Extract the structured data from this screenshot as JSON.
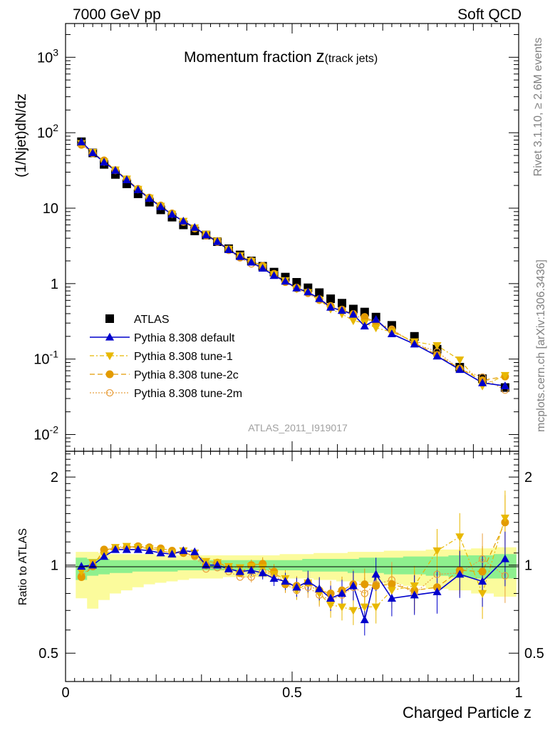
{
  "header": {
    "left": "7000 GeV pp",
    "right": "Soft QCD"
  },
  "side_text": {
    "rivet": "Rivet 3.1.10, ≥ 2.6M events",
    "site": "mcplots.cern.ch [arXiv:1306.3436]"
  },
  "chart_data": {
    "type": "scatter",
    "title": "Momentum fraction ",
    "title_var": "z",
    "title_sub": "(track jets)",
    "ylabel": "(1/Njet)dN/dz",
    "ratio_ylabel": "Ratio to ATLAS",
    "xlabel": "Charged Particle z",
    "analysis_label": "ATLAS_2011_I919017",
    "xlim": [
      0,
      1
    ],
    "ylim": [
      0.006,
      2800
    ],
    "yscale": "log",
    "ratio_ylim": [
      0.4,
      2.45
    ],
    "ratio_yscale": "log",
    "x_ticks": [
      "0",
      "0.5",
      "1"
    ],
    "y_ticks": [
      "10^-2",
      "10^-1",
      "1",
      "10",
      "10^2",
      "10^3"
    ],
    "ratio_ticks": [
      "0.5",
      "1",
      "2"
    ],
    "legend_placement": "bottom-left",
    "colors": {
      "data": "#000000",
      "default": "#0000cc",
      "tune1": "#e8b800",
      "tune2c": "#e39b00",
      "tune2m": "#e8a040",
      "band_inner": "#8ef08e",
      "band_outer": "#fbfb9c"
    },
    "x": [
      0.035,
      0.06,
      0.085,
      0.11,
      0.135,
      0.16,
      0.185,
      0.21,
      0.235,
      0.26,
      0.285,
      0.31,
      0.335,
      0.36,
      0.385,
      0.41,
      0.435,
      0.46,
      0.485,
      0.51,
      0.535,
      0.56,
      0.585,
      0.61,
      0.635,
      0.66,
      0.685,
      0.72,
      0.77,
      0.82,
      0.87,
      0.92,
      0.97
    ],
    "atlas": [
      76,
      54,
      38,
      28,
      21,
      15.5,
      12,
      9.5,
      7.6,
      6.0,
      5.0,
      4.4,
      3.6,
      2.9,
      2.4,
      2.0,
      1.7,
      1.42,
      1.22,
      1.04,
      0.88,
      0.76,
      0.63,
      0.55,
      0.46,
      0.42,
      0.36,
      0.28,
      0.2,
      0.135,
      0.078,
      0.055,
      0.042
    ],
    "series": [
      {
        "name": "ATLAS",
        "ref": "atlas"
      },
      {
        "name": "Pythia 8.308 default",
        "ratio": [
          0.99,
          1.0,
          1.07,
          1.13,
          1.13,
          1.13,
          1.12,
          1.1,
          1.09,
          1.12,
          1.11,
          1.0,
          1.0,
          0.97,
          0.95,
          0.96,
          0.94,
          0.9,
          0.88,
          0.84,
          0.88,
          0.83,
          0.77,
          0.8,
          0.85,
          0.65,
          0.93,
          0.77,
          0.79,
          0.81,
          0.93,
          0.88,
          1.05
        ]
      },
      {
        "name": "Pythia 8.308 tune-1",
        "ratio": [
          0.95,
          1.02,
          1.08,
          1.15,
          1.16,
          1.15,
          1.14,
          1.12,
          1.1,
          1.12,
          1.1,
          1.03,
          1.02,
          0.99,
          0.98,
          0.99,
          0.98,
          0.93,
          0.9,
          0.82,
          0.87,
          0.8,
          0.73,
          0.72,
          0.7,
          0.72,
          0.72,
          0.82,
          0.85,
          1.12,
          1.25,
          0.8,
          1.45
        ]
      },
      {
        "name": "Pythia 8.308 tune-2c",
        "ratio": [
          0.91,
          0.99,
          1.13,
          1.14,
          1.15,
          1.16,
          1.15,
          1.14,
          1.12,
          1.1,
          1.08,
          1.0,
          1.02,
          0.98,
          0.94,
          1.0,
          1.01,
          0.95,
          0.86,
          0.85,
          0.87,
          0.82,
          0.8,
          0.82,
          0.86,
          0.86,
          0.85,
          0.86,
          0.82,
          0.84,
          0.96,
          0.95,
          1.4
        ]
      },
      {
        "name": "Pythia 8.308 tune-2m",
        "ratio": [
          0.92,
          1.0,
          1.12,
          1.14,
          1.15,
          1.15,
          1.14,
          1.12,
          1.1,
          1.1,
          1.07,
          0.97,
          0.98,
          0.95,
          0.91,
          0.91,
          0.95,
          0.93,
          0.86,
          0.82,
          0.84,
          0.79,
          0.76,
          0.79,
          0.84,
          0.8,
          0.86,
          0.89,
          0.8,
          0.93,
          0.94,
          1.05,
          0.92
        ]
      }
    ],
    "band_inner": {
      "lo": [
        0.89,
        0.92,
        0.93,
        0.94,
        0.94,
        0.95,
        0.95,
        0.95,
        0.95,
        0.96,
        0.96,
        0.96,
        0.96,
        0.96,
        0.96,
        0.96,
        0.96,
        0.96,
        0.96,
        0.96,
        0.95,
        0.95,
        0.95,
        0.95,
        0.94,
        0.94,
        0.94,
        0.93,
        0.93,
        0.92,
        0.91,
        0.9,
        0.9
      ],
      "hi": [
        1.06,
        1.05,
        1.05,
        1.04,
        1.04,
        1.04,
        1.04,
        1.04,
        1.04,
        1.04,
        1.04,
        1.04,
        1.04,
        1.04,
        1.04,
        1.04,
        1.04,
        1.04,
        1.04,
        1.04,
        1.05,
        1.05,
        1.05,
        1.05,
        1.05,
        1.06,
        1.06,
        1.06,
        1.07,
        1.07,
        1.08,
        1.08,
        1.09
      ]
    },
    "band_outer": {
      "lo": [
        0.77,
        0.71,
        0.76,
        0.8,
        0.82,
        0.84,
        0.86,
        0.87,
        0.88,
        0.89,
        0.9,
        0.9,
        0.9,
        0.91,
        0.91,
        0.91,
        0.91,
        0.91,
        0.9,
        0.9,
        0.9,
        0.89,
        0.89,
        0.88,
        0.88,
        0.87,
        0.87,
        0.86,
        0.85,
        0.83,
        0.82,
        0.8,
        0.78
      ],
      "hi": [
        1.11,
        1.11,
        1.1,
        1.09,
        1.09,
        1.09,
        1.09,
        1.08,
        1.08,
        1.08,
        1.08,
        1.08,
        1.08,
        1.08,
        1.08,
        1.08,
        1.08,
        1.08,
        1.09,
        1.09,
        1.09,
        1.1,
        1.1,
        1.1,
        1.11,
        1.11,
        1.11,
        1.12,
        1.12,
        1.13,
        1.13,
        1.14,
        1.15
      ]
    }
  }
}
